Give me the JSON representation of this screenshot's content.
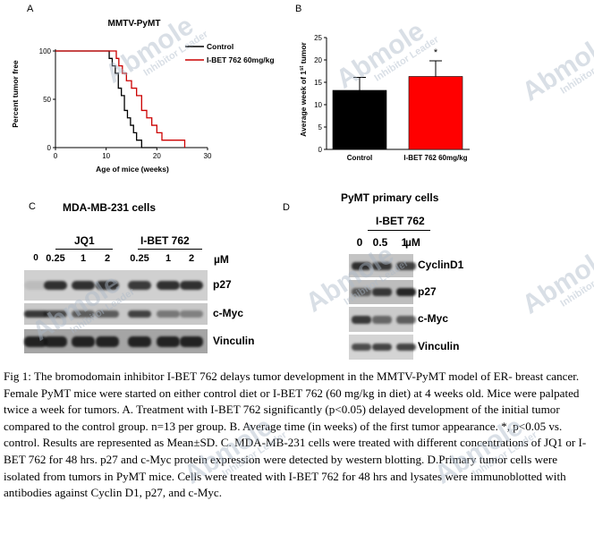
{
  "panelA": {
    "label": "A",
    "title": "MMTV-PyMT",
    "ylabel": "Percent tumor free",
    "xlabel": "Age of mice (weeks)",
    "legend": [
      {
        "name": "Control",
        "color": "#000000"
      },
      {
        "name": "I-BET 762 60mg/kg",
        "color": "#cc0000"
      }
    ]
  },
  "panelB": {
    "label": "B",
    "ylabel_html": "Average week of 1st tumor",
    "star": "*"
  },
  "panelC": {
    "label": "C",
    "title": "MDA-MB-231 cells",
    "group1": "JQ1",
    "group2": "I-BET 762",
    "lanes": [
      "0",
      "0.25",
      "1",
      "2",
      "0.25",
      "1",
      "2"
    ],
    "unit": "µM",
    "bands": [
      "p27",
      "c-Myc",
      "Vinculin"
    ]
  },
  "panelD": {
    "label": "D",
    "title": "PyMT primary cells",
    "group": "I-BET 762",
    "lanes": [
      "0",
      "0.5",
      "1"
    ],
    "unit": "µM",
    "bands": [
      "CyclinD1",
      "p27",
      "c-Myc",
      "Vinculin"
    ]
  },
  "caption": "Fig 1: The bromodomain inhibitor I-BET 762 delays tumor development in the MMTV-PyMT model of ER- breast cancer. Female PyMT mice were started on either control diet or I-BET 762 (60 mg/kg in diet) at 4 weeks old. Mice were palpated twice a week for tumors. A. Treatment with I-BET 762 significantly (p<0.05) delayed development of the initial tumor compared to the control group. n=13 per group. B. Average time (in weeks) of the first tumor appearance. *, p<0.05 vs. control. Results are represented as Mean±SD. C. MDA-MB-231 cells were treated with different concentrations of JQ1 or I-BET 762 for 48 hrs. p27 and c-Myc protein expression were detected by western blotting. D.Primary tumor cells were isolated from tumors in PyMT mice. Cells were treated with I-BET 762 for 48 hrs and lysates were immunoblotted with antibodies against Cyclin D1, p27, and c-Myc.",
  "watermark": {
    "brand": "Abmole",
    "tagline": "Inhibitor Leader"
  },
  "chart_data": [
    {
      "type": "line",
      "title": "MMTV-PyMT",
      "xlabel": "Age of mice (weeks)",
      "ylabel": "Percent tumor free",
      "xlim": [
        0,
        30
      ],
      "ylim": [
        0,
        100
      ],
      "xticks": [
        0,
        10,
        20,
        30
      ],
      "yticks": [
        0,
        50,
        100
      ],
      "series": [
        {
          "name": "Control",
          "color": "#000000",
          "x": [
            0,
            10,
            10.6,
            11.2,
            11.8,
            12.4,
            13,
            13.6,
            14.2,
            14.8,
            15.4,
            16,
            17,
            20
          ],
          "y": [
            100,
            100,
            92.3,
            84.6,
            76.9,
            61.5,
            53.8,
            38.5,
            30.8,
            23.1,
            15.4,
            7.7,
            0,
            0
          ]
        },
        {
          "name": "I-BET 762 60mg/kg",
          "color": "#cc0000",
          "x": [
            0,
            11,
            12,
            12.5,
            13.2,
            14,
            15,
            16,
            17,
            18,
            19,
            20,
            21,
            25.5
          ],
          "y": [
            100,
            100,
            92.3,
            84.6,
            76.9,
            69.2,
            61.5,
            53.8,
            38.5,
            30.8,
            23.1,
            15.4,
            7.7,
            0
          ]
        }
      ]
    },
    {
      "type": "bar",
      "ylabel": "Average week of 1st tumor",
      "categories": [
        "Control",
        "I-BET 762 60mg/kg"
      ],
      "values": [
        13.2,
        16.3
      ],
      "errors": [
        2.9,
        3.5
      ],
      "colors": [
        "#000000",
        "#ff0000"
      ],
      "ylim": [
        0,
        25
      ],
      "yticks": [
        0,
        5,
        10,
        15,
        20,
        25
      ],
      "annotation": "*"
    }
  ]
}
